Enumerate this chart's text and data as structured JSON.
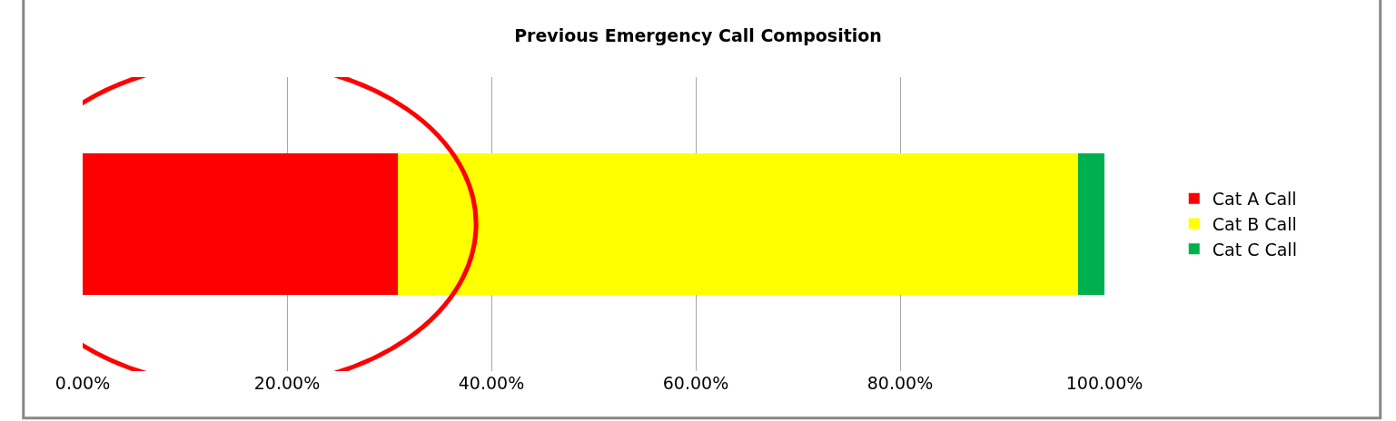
{
  "chart_data": {
    "type": "bar",
    "title": "Previous Emergency Call Composition",
    "orientation": "horizontal",
    "stacked": true,
    "categories": [
      null
    ],
    "series": [
      {
        "name": "Cat A Call",
        "color": "#ff0000",
        "values": [
          30.8
        ]
      },
      {
        "name": "Cat B Call",
        "color": "#ffff00",
        "values": [
          66.6
        ]
      },
      {
        "name": "Cat C Call",
        "color": "#00b050",
        "values": [
          2.6
        ]
      }
    ],
    "xlim": [
      0,
      100
    ],
    "xticks": [
      {
        "value": 0,
        "label": "0.00%"
      },
      {
        "value": 20,
        "label": "20.00%"
      },
      {
        "value": 40,
        "label": "40.00%"
      },
      {
        "value": 60,
        "label": "60.00%"
      },
      {
        "value": 80,
        "label": "80.00%"
      },
      {
        "value": 100,
        "label": "100.00%"
      }
    ],
    "grid": "x",
    "legend": "right",
    "tick_labels": "x"
  }
}
